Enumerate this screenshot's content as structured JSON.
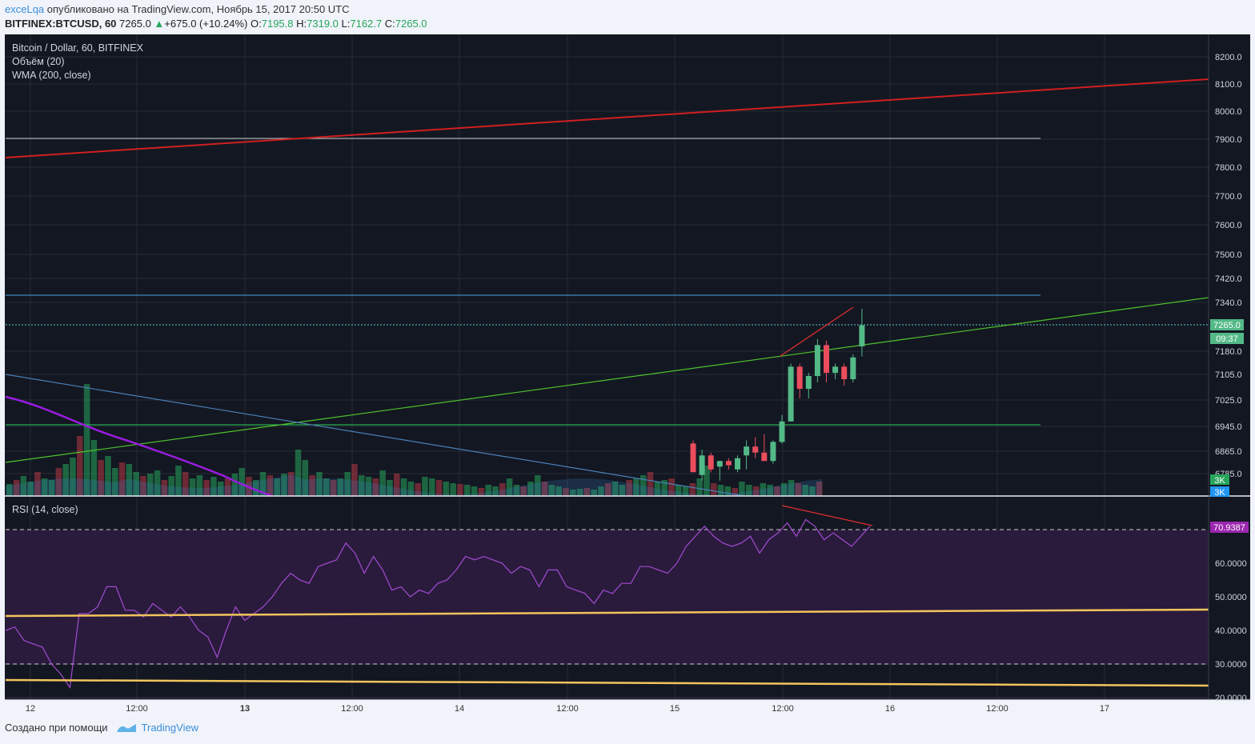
{
  "header": {
    "author": "exceLqa",
    "published_text": "опубликовано на TradingView.com, Ноябрь 15, 2017 20:50 UTC",
    "symbol": "BITFINEX:BTCUSD, 60",
    "last": "7265.0",
    "change_arrow": "▲",
    "change": "+675.0 (+10.24%)",
    "o_label": "O:",
    "o_value": "7195.8",
    "h_label": "H:",
    "h_value": "7319.0",
    "l_label": "L:",
    "l_value": "7162.7",
    "c_label": "C:",
    "c_value": "7265.0"
  },
  "legend": {
    "title": "Bitcoin / Dollar, 60, BITFINEX",
    "volume": "Объём (20)",
    "wma": "WMA (200, close)",
    "rsi": "RSI (14, close)"
  },
  "price_axis": {
    "ticks": [
      "8200.0",
      "8100.0",
      "8000.0",
      "7900.0",
      "7800.0",
      "7700.0",
      "7600.0",
      "7500.0",
      "7420.0",
      "7340.0",
      "7180.0",
      "7105.0",
      "7025.0",
      "6945.0",
      "6865.0",
      "6785.0"
    ],
    "last_price_label": "7265.0",
    "countdown_label": "09:37",
    "volume_labels": [
      "3K",
      "3K"
    ]
  },
  "rsi_axis": {
    "ticks": [
      "60.0000",
      "50.0000",
      "40.0000",
      "30.0000",
      "20.0000"
    ],
    "value_label": "70.9387"
  },
  "time_axis": {
    "ticks": [
      "12",
      "12:00",
      "13",
      "12:00",
      "14",
      "12:00",
      "15",
      "12:00",
      "16",
      "12:00",
      "17"
    ]
  },
  "colors": {
    "background": "#131722",
    "bull": "#53b987",
    "bear": "#eb4d5c",
    "wma": "#d11f1f",
    "rsi_line": "#a24bd1",
    "rsi_band": "#2a1b3d",
    "support_line": "#f2c55c",
    "trend_green": "#4ec32c",
    "trend_blue": "#4a7fb5",
    "ema_purple": "#9a1de0"
  },
  "chart_data": {
    "type": "candlestick",
    "candles_visible": [
      {
        "o": 6890,
        "h": 6900,
        "l": 6800,
        "c": 6790
      },
      {
        "o": 6780,
        "h": 6870,
        "l": 6760,
        "c": 6850
      },
      {
        "o": 6850,
        "h": 6860,
        "l": 6790,
        "c": 6800
      },
      {
        "o": 6810,
        "h": 6830,
        "l": 6760,
        "c": 6830
      },
      {
        "o": 6830,
        "h": 6840,
        "l": 6800,
        "c": 6815
      },
      {
        "o": 6800,
        "h": 6850,
        "l": 6790,
        "c": 6840
      },
      {
        "o": 6850,
        "h": 6900,
        "l": 6800,
        "c": 6880
      },
      {
        "o": 6880,
        "h": 6910,
        "l": 6840,
        "c": 6860
      },
      {
        "o": 6860,
        "h": 6920,
        "l": 6830,
        "c": 6830
      },
      {
        "o": 6830,
        "h": 6900,
        "l": 6820,
        "c": 6895
      },
      {
        "o": 6895,
        "h": 6980,
        "l": 6890,
        "c": 6960
      },
      {
        "o": 6960,
        "h": 7140,
        "l": 6960,
        "c": 7130
      },
      {
        "o": 7130,
        "h": 7140,
        "l": 7030,
        "c": 7060
      },
      {
        "o": 7060,
        "h": 7110,
        "l": 7030,
        "c": 7100
      },
      {
        "o": 7100,
        "h": 7220,
        "l": 7080,
        "c": 7200
      },
      {
        "o": 7200,
        "h": 7215,
        "l": 7080,
        "c": 7110
      },
      {
        "o": 7110,
        "h": 7140,
        "l": 7090,
        "c": 7130
      },
      {
        "o": 7130,
        "h": 7140,
        "l": 7070,
        "c": 7090
      },
      {
        "o": 7090,
        "h": 7170,
        "l": 7080,
        "c": 7160
      },
      {
        "o": 7195.8,
        "h": 7319,
        "l": 7162.7,
        "c": 7265
      }
    ],
    "rsi": [
      40,
      41,
      37,
      36,
      35,
      30,
      27,
      23,
      45,
      45,
      47,
      53,
      53,
      46,
      46,
      44,
      48,
      46,
      44,
      47,
      44,
      40,
      38,
      32,
      40,
      47,
      43,
      45,
      47,
      50,
      54,
      57,
      55,
      54,
      59,
      60,
      61,
      66,
      63,
      57,
      62,
      58,
      52,
      53,
      50,
      52,
      51,
      54,
      55,
      58,
      62,
      61,
      62,
      61,
      60,
      57,
      59,
      58,
      53,
      58,
      58,
      53,
      52,
      51,
      48,
      52,
      51,
      54,
      54,
      59,
      59,
      58,
      57,
      60,
      65,
      68,
      71,
      68,
      66,
      65,
      66,
      68,
      63,
      67,
      69,
      72,
      68,
      73,
      71,
      67,
      69,
      67,
      65,
      68,
      71
    ]
  }
}
